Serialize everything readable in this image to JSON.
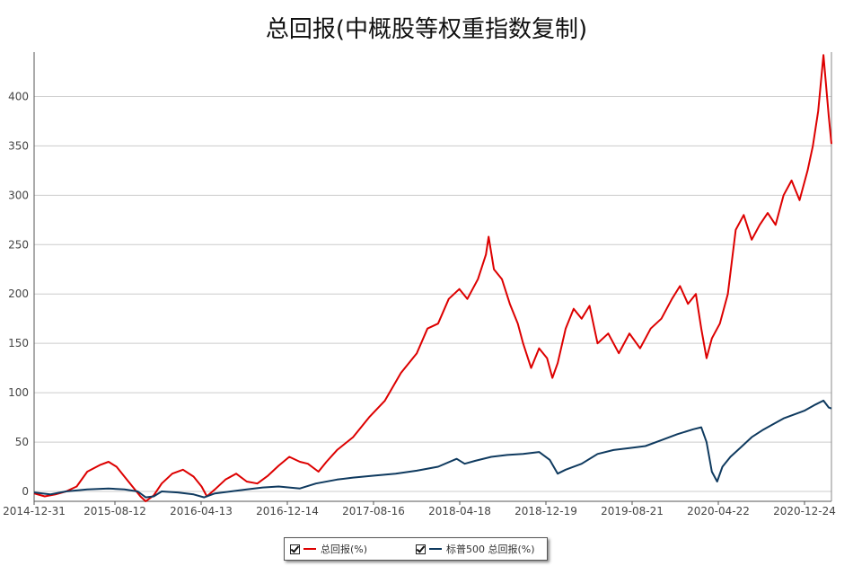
{
  "colors": {
    "total_return": "#dd0000",
    "sp500": "#0f3a5f",
    "grid": "#cccccc",
    "axis": "#555555"
  },
  "chart_data": {
    "type": "line",
    "title": "总回报(中概股等权重指数复制)",
    "xlabel": "",
    "ylabel": "",
    "ylim": [
      -10,
      445
    ],
    "yticks": [
      0,
      50,
      100,
      150,
      200,
      250,
      300,
      350,
      400
    ],
    "xticks": [
      "2014-12-31",
      "2015-08-12",
      "2016-04-13",
      "2016-12-14",
      "2017-08-16",
      "2018-04-18",
      "2018-12-19",
      "2019-08-21",
      "2020-04-22",
      "2020-12-24"
    ],
    "grid": true,
    "legend": "bottom",
    "series": [
      {
        "name": "总回报(%)",
        "color": "#dd0000",
        "points": [
          [
            0,
            -2
          ],
          [
            0.2,
            -5
          ],
          [
            0.4,
            -3
          ],
          [
            0.6,
            0
          ],
          [
            0.8,
            5
          ],
          [
            1.0,
            20
          ],
          [
            1.25,
            27
          ],
          [
            1.4,
            30
          ],
          [
            1.55,
            25
          ],
          [
            1.7,
            15
          ],
          [
            1.85,
            5
          ],
          [
            2.0,
            -5
          ],
          [
            2.1,
            -10
          ],
          [
            2.25,
            -4
          ],
          [
            2.4,
            8
          ],
          [
            2.6,
            18
          ],
          [
            2.8,
            22
          ],
          [
            3.0,
            15
          ],
          [
            3.15,
            5
          ],
          [
            3.25,
            -5
          ],
          [
            3.4,
            2
          ],
          [
            3.6,
            12
          ],
          [
            3.8,
            18
          ],
          [
            4.0,
            10
          ],
          [
            4.2,
            8
          ],
          [
            4.4,
            16
          ],
          [
            4.6,
            26
          ],
          [
            4.8,
            35
          ],
          [
            5.0,
            30
          ],
          [
            5.15,
            28
          ],
          [
            5.35,
            20
          ],
          [
            5.5,
            30
          ],
          [
            5.7,
            42
          ],
          [
            6.0,
            55
          ],
          [
            6.3,
            75
          ],
          [
            6.6,
            92
          ],
          [
            6.9,
            120
          ],
          [
            7.2,
            140
          ],
          [
            7.4,
            165
          ],
          [
            7.6,
            170
          ],
          [
            7.8,
            195
          ],
          [
            8.0,
            205
          ],
          [
            8.15,
            195
          ],
          [
            8.35,
            215
          ],
          [
            8.5,
            240
          ],
          [
            8.55,
            258
          ],
          [
            8.65,
            225
          ],
          [
            8.8,
            215
          ],
          [
            8.95,
            190
          ],
          [
            9.1,
            170
          ],
          [
            9.2,
            150
          ],
          [
            9.35,
            125
          ],
          [
            9.5,
            145
          ],
          [
            9.65,
            135
          ],
          [
            9.75,
            115
          ],
          [
            9.85,
            130
          ],
          [
            10.0,
            165
          ],
          [
            10.15,
            185
          ],
          [
            10.3,
            175
          ],
          [
            10.45,
            188
          ],
          [
            10.6,
            150
          ],
          [
            10.8,
            160
          ],
          [
            11.0,
            140
          ],
          [
            11.2,
            160
          ],
          [
            11.4,
            145
          ],
          [
            11.6,
            165
          ],
          [
            11.8,
            175
          ],
          [
            12.0,
            195
          ],
          [
            12.15,
            208
          ],
          [
            12.3,
            190
          ],
          [
            12.45,
            200
          ],
          [
            12.55,
            165
          ],
          [
            12.65,
            135
          ],
          [
            12.75,
            155
          ],
          [
            12.9,
            170
          ],
          [
            13.05,
            200
          ],
          [
            13.2,
            265
          ],
          [
            13.35,
            280
          ],
          [
            13.5,
            255
          ],
          [
            13.65,
            270
          ],
          [
            13.8,
            282
          ],
          [
            13.95,
            270
          ],
          [
            14.1,
            300
          ],
          [
            14.25,
            315
          ],
          [
            14.4,
            295
          ],
          [
            14.55,
            325
          ],
          [
            14.65,
            350
          ],
          [
            14.75,
            385
          ],
          [
            14.85,
            442
          ],
          [
            14.95,
            380
          ],
          [
            15.0,
            352
          ]
        ]
      },
      {
        "name": "标普500 总回报(%)",
        "color": "#0f3a5f",
        "points": [
          [
            0,
            -1
          ],
          [
            0.3,
            -3
          ],
          [
            0.6,
            0
          ],
          [
            1.0,
            2
          ],
          [
            1.4,
            3
          ],
          [
            1.7,
            2
          ],
          [
            1.95,
            0
          ],
          [
            2.1,
            -6
          ],
          [
            2.25,
            -5
          ],
          [
            2.4,
            0
          ],
          [
            2.7,
            -1
          ],
          [
            3.0,
            -3
          ],
          [
            3.2,
            -6
          ],
          [
            3.4,
            -2
          ],
          [
            3.7,
            0
          ],
          [
            4.0,
            2
          ],
          [
            4.3,
            4
          ],
          [
            4.6,
            5
          ],
          [
            5.0,
            3
          ],
          [
            5.3,
            8
          ],
          [
            5.7,
            12
          ],
          [
            6.0,
            14
          ],
          [
            6.4,
            16
          ],
          [
            6.8,
            18
          ],
          [
            7.2,
            21
          ],
          [
            7.6,
            25
          ],
          [
            7.95,
            33
          ],
          [
            8.1,
            28
          ],
          [
            8.3,
            31
          ],
          [
            8.6,
            35
          ],
          [
            8.9,
            37
          ],
          [
            9.2,
            38
          ],
          [
            9.5,
            40
          ],
          [
            9.7,
            32
          ],
          [
            9.85,
            18
          ],
          [
            10.0,
            22
          ],
          [
            10.3,
            28
          ],
          [
            10.6,
            38
          ],
          [
            10.9,
            42
          ],
          [
            11.2,
            44
          ],
          [
            11.5,
            46
          ],
          [
            11.8,
            52
          ],
          [
            12.1,
            58
          ],
          [
            12.4,
            63
          ],
          [
            12.55,
            65
          ],
          [
            12.65,
            50
          ],
          [
            12.75,
            20
          ],
          [
            12.85,
            10
          ],
          [
            12.95,
            25
          ],
          [
            13.1,
            35
          ],
          [
            13.3,
            45
          ],
          [
            13.5,
            55
          ],
          [
            13.7,
            62
          ],
          [
            13.9,
            68
          ],
          [
            14.1,
            74
          ],
          [
            14.3,
            78
          ],
          [
            14.5,
            82
          ],
          [
            14.7,
            88
          ],
          [
            14.85,
            92
          ],
          [
            14.95,
            85
          ],
          [
            15.0,
            84
          ]
        ]
      }
    ]
  }
}
